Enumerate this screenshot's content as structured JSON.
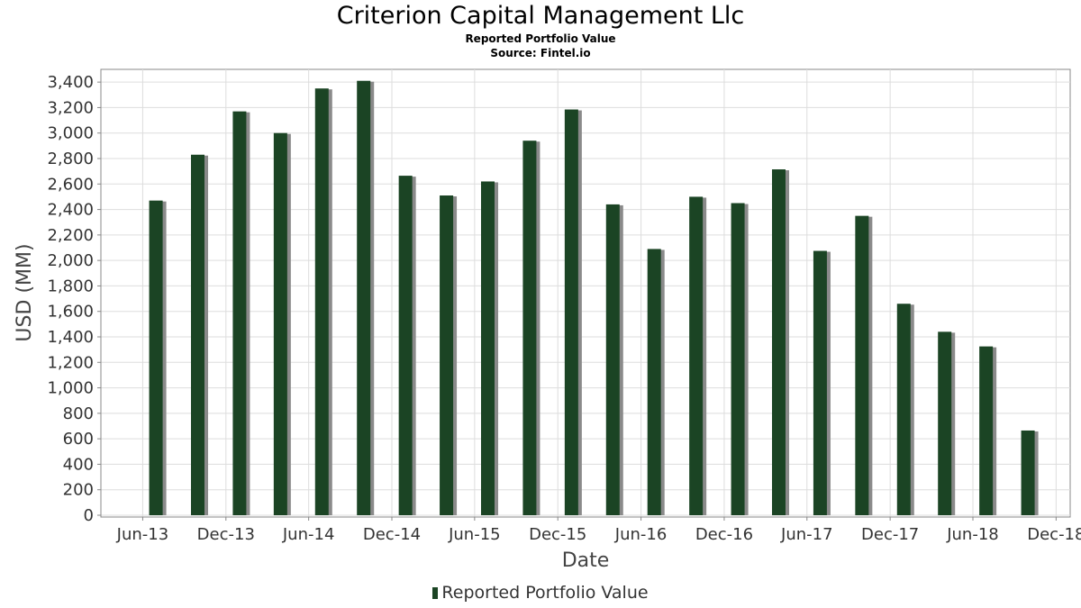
{
  "chart_data": {
    "type": "bar",
    "title": "Criterion Capital Management Llc",
    "subtitle": "Reported Portfolio Value",
    "source": "Source: Fintel.io",
    "xlabel": "Date",
    "ylabel": "USD (MM)",
    "ylim": [
      0,
      3500
    ],
    "yticks": [
      0,
      200,
      400,
      600,
      800,
      1000,
      1200,
      1400,
      1600,
      1800,
      2000,
      2200,
      2400,
      2600,
      2800,
      3000,
      3200,
      3400
    ],
    "ytick_labels": [
      "0",
      "200",
      "400",
      "600",
      "800",
      "1,000",
      "1,200",
      "1,400",
      "1,600",
      "1,800",
      "2,000",
      "2,200",
      "2,400",
      "2,600",
      "2,800",
      "3,000",
      "3,200",
      "3,400"
    ],
    "xtick_labels": [
      "Jun-13",
      "Dec-13",
      "Jun-14",
      "Dec-14",
      "Jun-15",
      "Dec-15",
      "Jun-16",
      "Dec-16",
      "Jun-17",
      "Dec-17",
      "Jun-18",
      "Dec-18"
    ],
    "xtick_dates": [
      "2013-06-01",
      "2013-12-01",
      "2014-06-01",
      "2014-12-01",
      "2015-06-01",
      "2015-12-01",
      "2016-06-01",
      "2016-12-01",
      "2017-06-01",
      "2017-12-01",
      "2018-06-01",
      "2018-12-01"
    ],
    "xlim": [
      "2013-03-01",
      "2019-01-01"
    ],
    "grid": true,
    "legend_position": "bottom",
    "series": [
      {
        "name": "Reported Portfolio Value",
        "color": "#1b4424",
        "x": [
          "2013-06-30",
          "2013-09-30",
          "2013-12-31",
          "2014-03-31",
          "2014-06-30",
          "2014-09-30",
          "2014-12-31",
          "2015-03-31",
          "2015-06-30",
          "2015-09-30",
          "2015-12-31",
          "2016-03-31",
          "2016-06-30",
          "2016-09-30",
          "2016-12-31",
          "2017-03-31",
          "2017-06-30",
          "2017-09-30",
          "2017-12-31",
          "2018-03-31",
          "2018-06-30",
          "2018-09-30"
        ],
        "values": [
          2470,
          2830,
          3170,
          3000,
          3350,
          3410,
          2665,
          2510,
          2620,
          2940,
          3185,
          2440,
          2090,
          2500,
          2450,
          2715,
          2075,
          2350,
          1660,
          1440,
          1325,
          665
        ]
      }
    ]
  }
}
